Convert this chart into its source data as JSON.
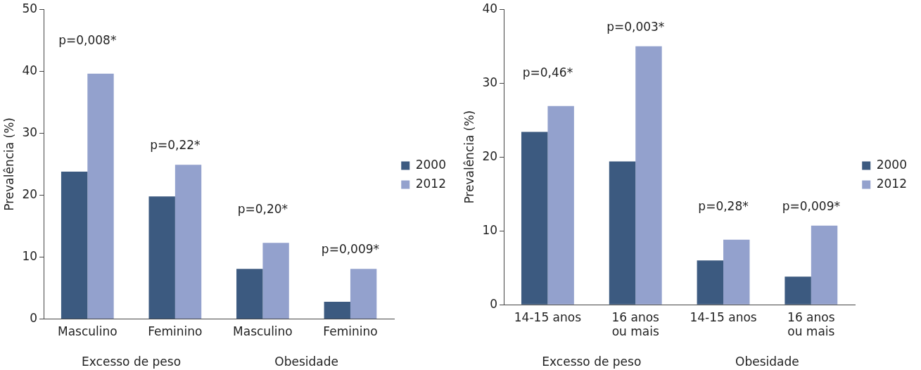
{
  "chart_data": [
    {
      "type": "bar",
      "ylabel": "Prevalência (%)",
      "categories": [
        "Masculino",
        "Feminino",
        "Masculino",
        "Feminino"
      ],
      "series": [
        {
          "name": "2000",
          "color": "#3c5a80",
          "values": [
            23.8,
            19.8,
            8.1,
            2.8
          ]
        },
        {
          "name": "2012",
          "color": "#93a1cd",
          "values": [
            39.6,
            24.9,
            12.3,
            8.1
          ]
        }
      ],
      "ylim": [
        0,
        50
      ],
      "yticks": [
        0,
        10,
        20,
        30,
        40,
        50
      ],
      "grid": false,
      "legend": "right",
      "annotations": [
        "p=0,008*",
        "p=0,22*",
        "p=0,20*",
        "p=0,009*",
        "Excesso de peso",
        "Obesidade"
      ]
    },
    {
      "type": "bar",
      "ylabel": "Prevalência (%)",
      "categories": [
        "14-15 anos",
        "16 anos ou mais",
        "14-15 anos",
        "16 anos ou mais"
      ],
      "series": [
        {
          "name": "2000",
          "color": "#3c5a80",
          "values": [
            23.4,
            19.4,
            6.0,
            3.8
          ]
        },
        {
          "name": "2012",
          "color": "#93a1cd",
          "values": [
            26.9,
            35.0,
            8.8,
            10.7
          ]
        }
      ],
      "ylim": [
        0,
        40
      ],
      "yticks": [
        0,
        10,
        20,
        30,
        40
      ],
      "grid": false,
      "legend": "right",
      "annotations": [
        "p=0,46*",
        "p=0,003*",
        "p=0,28*",
        "p=0,009*",
        "Excesso de peso",
        "Obesidade"
      ]
    }
  ]
}
